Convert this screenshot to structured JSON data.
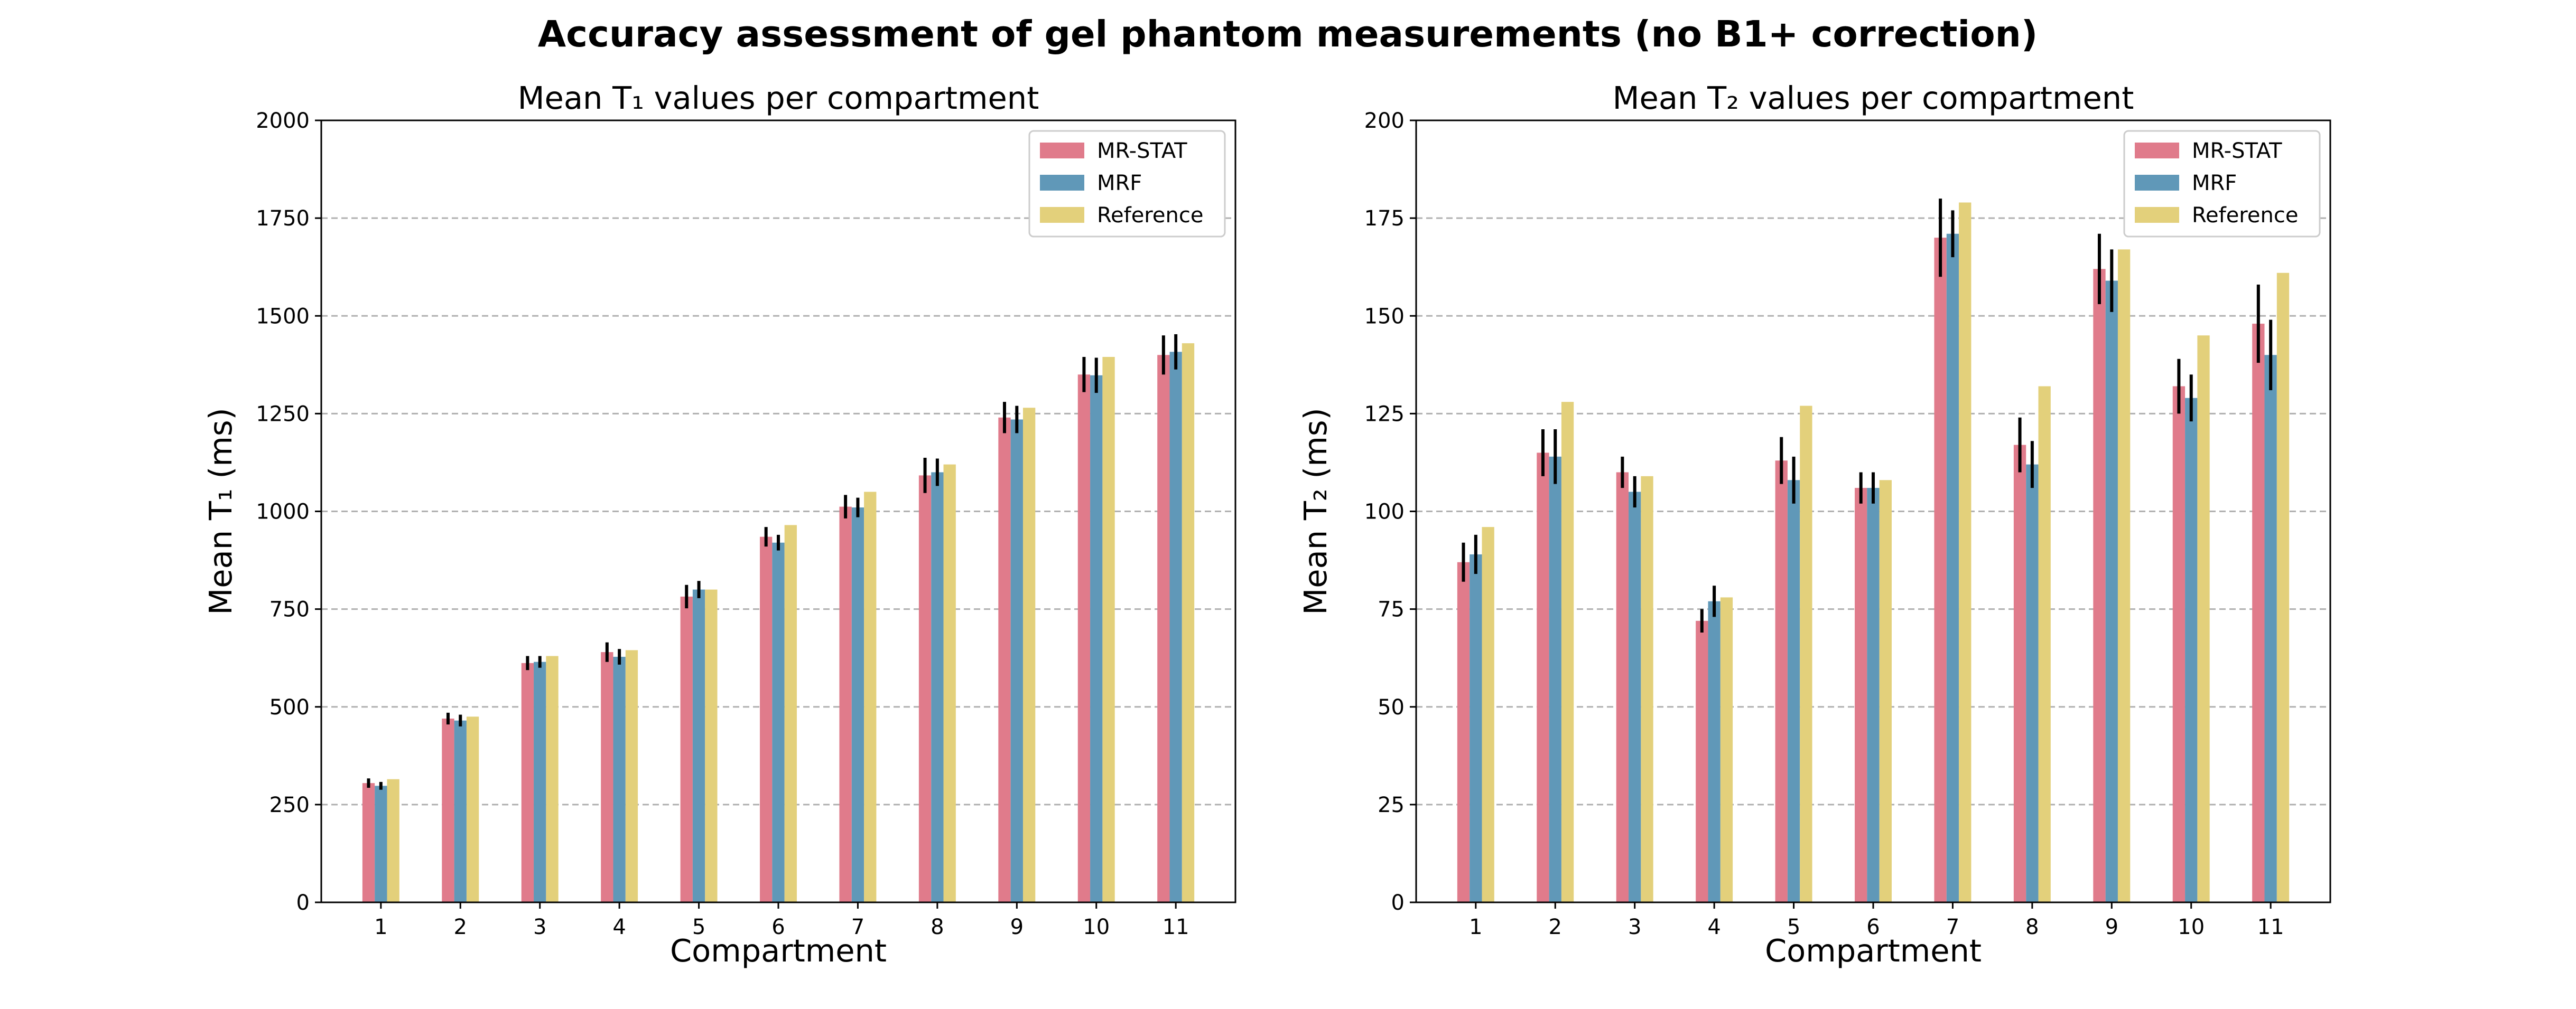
{
  "figure": {
    "title": "Accuracy assessment of gel phantom measurements (no B1+ correction)"
  },
  "colors": {
    "MR-STAT": "#e07b8b",
    "MRF": "#6098b8",
    "Reference": "#e3d07b"
  },
  "chart_data": [
    {
      "type": "bar",
      "title": "Mean T₁ values per compartment",
      "xlabel": "Compartment",
      "ylabel": "Mean T₁ (ms)",
      "ylim": [
        0,
        2000
      ],
      "yticks": [
        0,
        250,
        500,
        750,
        1000,
        1250,
        1500,
        1750,
        2000
      ],
      "grid": true,
      "legend_position": "top-right",
      "categories": [
        "1",
        "2",
        "3",
        "4",
        "5",
        "6",
        "7",
        "8",
        "9",
        "10",
        "11"
      ],
      "series": [
        {
          "name": "MR-STAT",
          "values": [
            305,
            470,
            612,
            640,
            782,
            935,
            1012,
            1092,
            1240,
            1350,
            1400
          ],
          "errors": [
            12,
            15,
            18,
            25,
            30,
            25,
            30,
            45,
            40,
            45,
            50
          ]
        },
        {
          "name": "MRF",
          "values": [
            298,
            465,
            615,
            628,
            800,
            920,
            1010,
            1100,
            1235,
            1348,
            1408
          ],
          "errors": [
            10,
            15,
            15,
            20,
            22,
            20,
            25,
            35,
            35,
            45,
            45
          ]
        },
        {
          "name": "Reference",
          "values": [
            315,
            475,
            630,
            645,
            800,
            965,
            1050,
            1120,
            1265,
            1395,
            1430
          ]
        }
      ]
    },
    {
      "type": "bar",
      "title": "Mean T₂ values per compartment",
      "xlabel": "Compartment",
      "ylabel": "Mean T₂ (ms)",
      "ylim": [
        0,
        200
      ],
      "yticks": [
        0,
        25,
        50,
        75,
        100,
        125,
        150,
        175,
        200
      ],
      "grid": true,
      "legend_position": "top-right",
      "categories": [
        "1",
        "2",
        "3",
        "4",
        "5",
        "6",
        "7",
        "8",
        "9",
        "10",
        "11"
      ],
      "series": [
        {
          "name": "MR-STAT",
          "values": [
            87,
            115,
            110,
            72,
            113,
            106,
            170,
            117,
            162,
            132,
            148
          ],
          "errors": [
            5,
            6,
            4,
            3,
            6,
            4,
            10,
            7,
            9,
            7,
            10
          ]
        },
        {
          "name": "MRF",
          "values": [
            89,
            114,
            105,
            77,
            108,
            106,
            171,
            112,
            159,
            129,
            140
          ],
          "errors": [
            5,
            7,
            4,
            4,
            6,
            4,
            6,
            6,
            8,
            6,
            9
          ]
        },
        {
          "name": "Reference",
          "values": [
            96,
            128,
            109,
            78,
            127,
            108,
            179,
            132,
            167,
            145,
            161
          ]
        }
      ]
    }
  ]
}
